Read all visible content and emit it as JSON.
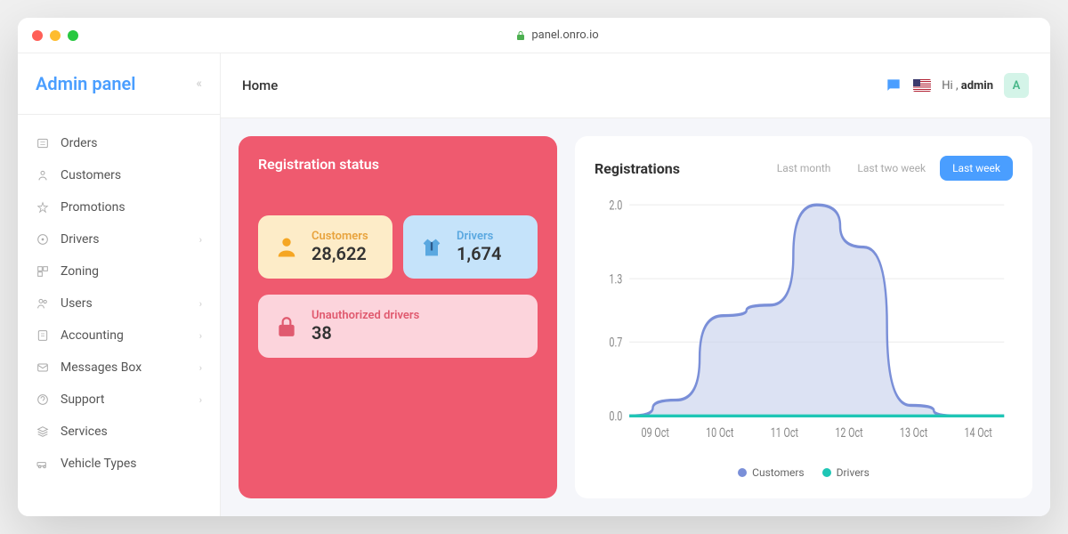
{
  "browser": {
    "url": "panel.onro.io"
  },
  "sidebar": {
    "title": "Admin panel",
    "items": [
      {
        "label": "Orders",
        "icon": "orders",
        "hasChildren": false
      },
      {
        "label": "Customers",
        "icon": "customers",
        "hasChildren": false
      },
      {
        "label": "Promotions",
        "icon": "promotions",
        "hasChildren": false
      },
      {
        "label": "Drivers",
        "icon": "drivers",
        "hasChildren": true
      },
      {
        "label": "Zoning",
        "icon": "zoning",
        "hasChildren": false
      },
      {
        "label": "Users",
        "icon": "users",
        "hasChildren": true
      },
      {
        "label": "Accounting",
        "icon": "accounting",
        "hasChildren": true
      },
      {
        "label": "Messages Box",
        "icon": "messages",
        "hasChildren": true
      },
      {
        "label": "Support",
        "icon": "support",
        "hasChildren": true
      },
      {
        "label": "Services",
        "icon": "services",
        "hasChildren": false
      },
      {
        "label": "Vehicle Types",
        "icon": "vehicle",
        "hasChildren": false
      }
    ]
  },
  "topbar": {
    "breadcrumb": "Home",
    "greeting_pre": "Hi ,",
    "greeting_user": "admin",
    "avatar_initial": "A"
  },
  "registration_status": {
    "title": "Registration status",
    "customers": {
      "label": "Customers",
      "value": "28,622"
    },
    "drivers": {
      "label": "Drivers",
      "value": "1,674"
    },
    "unauthorized": {
      "label": "Unauthorized drivers",
      "value": "38"
    },
    "colors": {
      "card_bg": "#ef5a6f",
      "customers_bg": "#fdecc8",
      "customers_label": "#e8a33d",
      "drivers_bg": "#c5e3fa",
      "drivers_label": "#5aa8e0",
      "unauth_bg": "#fcd4dc",
      "unauth_label": "#e05a6f"
    }
  },
  "chart": {
    "title": "Registrations",
    "tabs": [
      "Last month",
      "Last two week",
      "Last week"
    ],
    "active_tab": 2,
    "y_ticks": [
      0.0,
      0.7,
      1.3,
      2.0
    ],
    "x_labels": [
      "09 Oct",
      "10 Oct",
      "11 Oct",
      "12 Oct",
      "13 Oct",
      "14 Oct"
    ],
    "series": [
      {
        "name": "Customers",
        "color": "#7a8fd8",
        "fill": "#c5cfeb",
        "values": [
          0,
          0.15,
          0.95,
          1.05,
          2.0,
          1.6,
          0.1,
          0,
          0
        ]
      },
      {
        "name": "Drivers",
        "color": "#1fc6b5",
        "fill": "none",
        "values": [
          0,
          0,
          0,
          0,
          0,
          0,
          0,
          0,
          0
        ]
      }
    ],
    "ylim": [
      0,
      2.0
    ],
    "grid_color": "#f0f0f0",
    "tab_active_bg": "#4a9eff"
  }
}
